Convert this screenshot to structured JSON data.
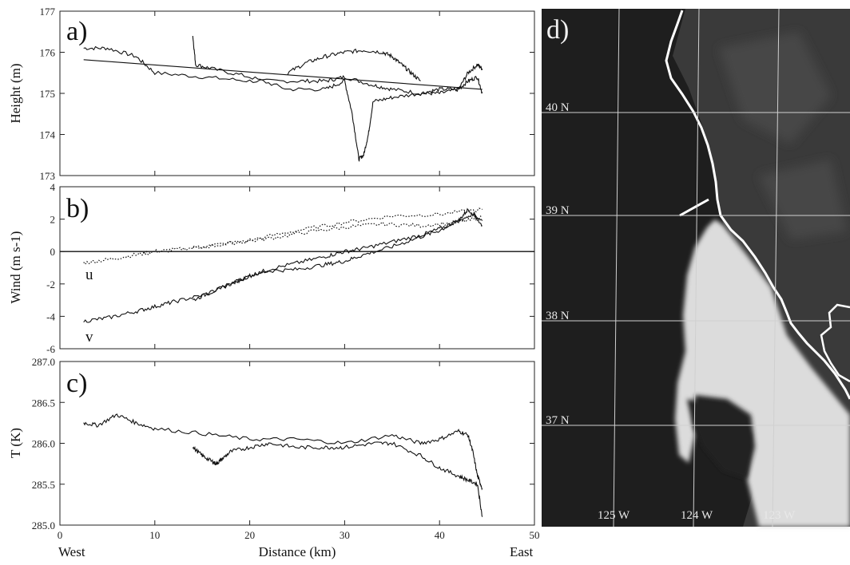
{
  "chart_data": [
    {
      "panel": "a)",
      "type": "line",
      "ylabel": "Height (m)",
      "ylim": [
        173,
        177
      ],
      "yticks": [
        "173",
        "174",
        "175",
        "176",
        "177"
      ],
      "xlim": [
        0,
        50
      ],
      "series": [
        {
          "x": [
            2.5,
            5,
            8,
            10,
            15,
            20,
            25,
            28,
            30,
            33,
            35,
            38,
            40,
            42,
            43,
            44,
            44.5
          ],
          "y": [
            176.1,
            176.1,
            175.9,
            175.5,
            175.4,
            175.3,
            175.3,
            175.3,
            175.4,
            175.2,
            175.1,
            175.0,
            175.0,
            175.1,
            175.5,
            175.7,
            175.6
          ]
        },
        {
          "x": [
            14,
            14.3,
            16,
            20,
            24,
            28,
            30,
            30.8,
            31.5,
            32,
            32.5,
            33,
            35,
            38,
            40,
            42,
            43,
            44,
            44.5
          ],
          "y": [
            176.4,
            175.7,
            175.6,
            175.4,
            175.1,
            175.1,
            175.3,
            174.5,
            173.4,
            173.5,
            174.0,
            174.8,
            174.9,
            175.0,
            175.1,
            175.1,
            175.3,
            175.4,
            175.0
          ]
        },
        {
          "x": [
            24,
            26,
            28,
            30,
            32,
            34,
            35,
            36,
            37,
            38
          ],
          "y": [
            175.5,
            175.75,
            175.9,
            176.0,
            176.05,
            176.0,
            175.9,
            175.7,
            175.5,
            175.3
          ]
        },
        {
          "x": [
            2.5,
            44.5
          ],
          "y": [
            175.82,
            175.1
          ]
        }
      ]
    },
    {
      "panel": "b)",
      "type": "line",
      "ylabel": "Wind (m s-1)",
      "ylim": [
        -6,
        4
      ],
      "yticks": [
        "-6",
        "-4",
        "-2",
        "0",
        "2",
        "4"
      ],
      "xlim": [
        0,
        50
      ],
      "annotations": [
        "u",
        "v"
      ],
      "series": [
        {
          "name": "u",
          "style": "dotted",
          "x": [
            2.5,
            5,
            8,
            10,
            12,
            15,
            20,
            25,
            30,
            35,
            40,
            44.5
          ],
          "y": [
            -0.7,
            -0.5,
            -0.2,
            0.0,
            0.1,
            0.3,
            0.7,
            1.3,
            1.8,
            2.2,
            2.3,
            2.6
          ]
        },
        {
          "name": "u",
          "style": "dotted",
          "x": [
            14,
            18,
            22,
            26,
            30,
            34,
            38,
            42,
            44.5
          ],
          "y": [
            0.2,
            0.5,
            0.8,
            1.2,
            1.5,
            1.7,
            1.6,
            1.8,
            2.1
          ]
        },
        {
          "name": "v",
          "style": "solid",
          "x": [
            2.5,
            5,
            8,
            10,
            12,
            15,
            18,
            20,
            22,
            25,
            28,
            30,
            32,
            35,
            38,
            40,
            42,
            43,
            44.5
          ],
          "y": [
            -4.3,
            -4.1,
            -3.7,
            -3.4,
            -3.1,
            -2.7,
            -2.0,
            -1.5,
            -1.1,
            -0.7,
            -0.3,
            0.0,
            0.2,
            0.6,
            1.0,
            1.4,
            1.9,
            2.6,
            1.9
          ]
        },
        {
          "name": "v",
          "style": "solid",
          "x": [
            14,
            16,
            18,
            20,
            22,
            25,
            28,
            30,
            32,
            35,
            38,
            40,
            42,
            43.5,
            44.5
          ],
          "y": [
            -3.0,
            -2.5,
            -2.0,
            -1.5,
            -1.2,
            -1.1,
            -0.8,
            -0.6,
            -0.2,
            0.3,
            0.9,
            1.3,
            1.9,
            2.3,
            1.6
          ]
        }
      ]
    },
    {
      "panel": "c)",
      "type": "line",
      "ylabel": "T (K)",
      "ylim": [
        285.0,
        287.0
      ],
      "yticks": [
        "285.0",
        "285.5",
        "286.0",
        "286.5",
        "287.0"
      ],
      "xlim": [
        0,
        50
      ],
      "xticks": [
        "0",
        "10",
        "20",
        "30",
        "40",
        "50"
      ],
      "xlabel": "Distance (km)",
      "xlabel_left": "West",
      "xlabel_right": "East",
      "series": [
        {
          "x": [
            2.5,
            4,
            6,
            8,
            10,
            15,
            20,
            25,
            30,
            35,
            38,
            40,
            42,
            43,
            43.5,
            44,
            44.5
          ],
          "y": [
            286.25,
            286.22,
            286.35,
            286.25,
            286.18,
            286.12,
            286.05,
            286.05,
            286.0,
            286.1,
            286.0,
            286.05,
            286.15,
            286.1,
            285.9,
            285.6,
            285.45
          ]
        },
        {
          "x": [
            14,
            15,
            16,
            16.5,
            17,
            18,
            20,
            22,
            25,
            28,
            30,
            33,
            35,
            38,
            40,
            42,
            43,
            44,
            44.5
          ],
          "y": [
            285.95,
            285.85,
            285.78,
            285.75,
            285.8,
            285.9,
            285.95,
            286.0,
            285.95,
            285.95,
            285.95,
            286.0,
            286.0,
            285.85,
            285.7,
            285.6,
            285.55,
            285.5,
            285.1
          ]
        }
      ]
    }
  ],
  "map_panel": {
    "label": "d)",
    "lat_labels": [
      "40 N",
      "39 N",
      "38 N",
      "37 N"
    ],
    "lon_labels": [
      "125 W",
      "124 W",
      "123 W"
    ]
  }
}
